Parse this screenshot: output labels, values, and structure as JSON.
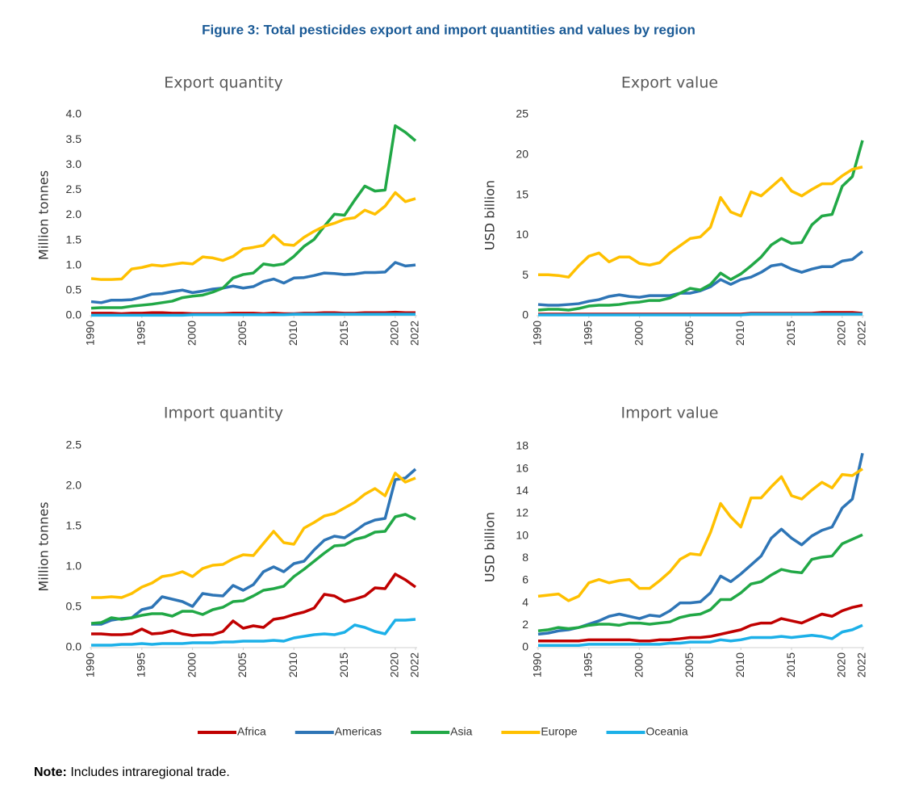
{
  "title": "Figure 3: Total pesticides export and import quantities and values by region",
  "note": {
    "label": "Note:",
    "text": "Includes intraregional trade."
  },
  "chart_data": [
    {
      "type": "line",
      "title": "Export quantity",
      "y_label": "Million tonnes",
      "x": [
        1990,
        1991,
        1992,
        1993,
        1994,
        1995,
        1996,
        1997,
        1998,
        1999,
        2000,
        2001,
        2002,
        2003,
        2004,
        2005,
        2006,
        2007,
        2008,
        2009,
        2010,
        2011,
        2012,
        2013,
        2014,
        2015,
        2016,
        2017,
        2018,
        2019,
        2020,
        2021,
        2022
      ],
      "xlim": [
        1990,
        2022
      ],
      "xticks": [
        1990,
        1995,
        2000,
        2005,
        2010,
        2015,
        2020,
        2022
      ],
      "ylim": [
        0,
        4
      ],
      "yticks": [
        {
          "value": 0,
          "label": "0.0"
        },
        {
          "value": 0.5,
          "label": "0.5"
        },
        {
          "value": 1,
          "label": "1.0"
        },
        {
          "value": 1.5,
          "label": "1.5"
        },
        {
          "value": 2,
          "label": "2.0"
        },
        {
          "value": 2.5,
          "label": "2.5"
        },
        {
          "value": 3,
          "label": "3.0"
        },
        {
          "value": 3.5,
          "label": "3.5"
        },
        {
          "value": 4,
          "label": "4.0"
        }
      ],
      "series": [
        {
          "name": "Africa",
          "color": "#c00000",
          "values": [
            0.05,
            0.05,
            0.05,
            0.04,
            0.05,
            0.05,
            0.06,
            0.06,
            0.05,
            0.05,
            0.04,
            0.04,
            0.04,
            0.04,
            0.05,
            0.05,
            0.05,
            0.04,
            0.05,
            0.04,
            0.04,
            0.05,
            0.05,
            0.06,
            0.06,
            0.05,
            0.05,
            0.06,
            0.06,
            0.06,
            0.07,
            0.06,
            0.06
          ]
        },
        {
          "name": "Americas",
          "color": "#2e75b6",
          "values": [
            0.28,
            0.26,
            0.31,
            0.31,
            0.32,
            0.37,
            0.43,
            0.44,
            0.48,
            0.51,
            0.46,
            0.49,
            0.53,
            0.55,
            0.59,
            0.55,
            0.58,
            0.68,
            0.73,
            0.65,
            0.75,
            0.76,
            0.8,
            0.85,
            0.84,
            0.82,
            0.83,
            0.86,
            0.86,
            0.87,
            1.06,
            0.99,
            1.01
          ]
        },
        {
          "name": "Asia",
          "color": "#21a846",
          "values": [
            0.15,
            0.16,
            0.16,
            0.16,
            0.19,
            0.21,
            0.23,
            0.26,
            0.29,
            0.36,
            0.39,
            0.41,
            0.47,
            0.55,
            0.75,
            0.82,
            0.85,
            1.03,
            1.0,
            1.03,
            1.18,
            1.38,
            1.52,
            1.78,
            2.02,
            2.0,
            2.3,
            2.58,
            2.48,
            2.5,
            3.78,
            3.65,
            3.48
          ]
        },
        {
          "name": "Europe",
          "color": "#ffc000",
          "values": [
            0.74,
            0.72,
            0.72,
            0.73,
            0.93,
            0.96,
            1.01,
            0.99,
            1.02,
            1.05,
            1.03,
            1.17,
            1.15,
            1.1,
            1.18,
            1.33,
            1.36,
            1.4,
            1.6,
            1.42,
            1.4,
            1.56,
            1.68,
            1.78,
            1.84,
            1.92,
            1.95,
            2.1,
            2.02,
            2.18,
            2.45,
            2.27,
            2.33
          ]
        },
        {
          "name": "Oceania",
          "color": "#1cb0e8",
          "values": [
            0.01,
            0.01,
            0.01,
            0.01,
            0.01,
            0.01,
            0.01,
            0.01,
            0.01,
            0.01,
            0.02,
            0.02,
            0.02,
            0.02,
            0.02,
            0.02,
            0.02,
            0.02,
            0.02,
            0.02,
            0.03,
            0.03,
            0.03,
            0.03,
            0.03,
            0.03,
            0.03,
            0.03,
            0.03,
            0.03,
            0.03,
            0.03,
            0.03
          ]
        }
      ]
    },
    {
      "type": "line",
      "title": "Export value",
      "y_label": "USD billion",
      "x": [
        1990,
        1991,
        1992,
        1993,
        1994,
        1995,
        1996,
        1997,
        1998,
        1999,
        2000,
        2001,
        2002,
        2003,
        2004,
        2005,
        2006,
        2007,
        2008,
        2009,
        2010,
        2011,
        2012,
        2013,
        2014,
        2015,
        2016,
        2017,
        2018,
        2019,
        2020,
        2021,
        2022
      ],
      "xlim": [
        1990,
        2022
      ],
      "xticks": [
        1990,
        1995,
        2000,
        2005,
        2010,
        2015,
        2020,
        2022
      ],
      "ylim": [
        0,
        25
      ],
      "yticks": [
        0,
        5,
        10,
        15,
        20,
        25
      ],
      "series": [
        {
          "name": "Africa",
          "color": "#c00000",
          "values": [
            0.2,
            0.2,
            0.2,
            0.2,
            0.2,
            0.2,
            0.2,
            0.2,
            0.2,
            0.2,
            0.2,
            0.2,
            0.2,
            0.2,
            0.2,
            0.2,
            0.2,
            0.2,
            0.2,
            0.2,
            0.2,
            0.3,
            0.3,
            0.3,
            0.3,
            0.3,
            0.3,
            0.3,
            0.4,
            0.4,
            0.4,
            0.4,
            0.3
          ]
        },
        {
          "name": "Americas",
          "color": "#2e75b6",
          "values": [
            1.4,
            1.3,
            1.3,
            1.4,
            1.5,
            1.8,
            2.0,
            2.4,
            2.6,
            2.4,
            2.3,
            2.5,
            2.5,
            2.5,
            2.8,
            2.8,
            3.1,
            3.6,
            4.5,
            3.9,
            4.5,
            4.8,
            5.4,
            6.2,
            6.4,
            5.8,
            5.4,
            5.8,
            6.1,
            6.1,
            6.8,
            7.0,
            8.0
          ]
        },
        {
          "name": "Asia",
          "color": "#21a846",
          "values": [
            0.7,
            0.8,
            0.8,
            0.7,
            0.9,
            1.2,
            1.3,
            1.3,
            1.4,
            1.6,
            1.7,
            1.9,
            1.9,
            2.2,
            2.8,
            3.4,
            3.2,
            3.9,
            5.3,
            4.5,
            5.2,
            6.2,
            7.3,
            8.8,
            9.6,
            9.0,
            9.1,
            11.3,
            12.4,
            12.6,
            16.1,
            17.3,
            21.8
          ]
        },
        {
          "name": "Europe",
          "color": "#ffc000",
          "values": [
            5.1,
            5.1,
            5.0,
            4.8,
            6.2,
            7.4,
            7.8,
            6.7,
            7.3,
            7.3,
            6.5,
            6.3,
            6.6,
            7.8,
            8.7,
            9.6,
            9.8,
            11.0,
            14.7,
            12.9,
            12.4,
            15.4,
            14.9,
            16.0,
            17.1,
            15.5,
            14.9,
            15.7,
            16.4,
            16.4,
            17.4,
            18.2,
            18.5
          ]
        },
        {
          "name": "Oceania",
          "color": "#1cb0e8",
          "values": [
            0.1,
            0.1,
            0.1,
            0.1,
            0.1,
            0.1,
            0.1,
            0.1,
            0.1,
            0.1,
            0.1,
            0.1,
            0.1,
            0.1,
            0.1,
            0.1,
            0.1,
            0.1,
            0.1,
            0.1,
            0.1,
            0.2,
            0.2,
            0.2,
            0.2,
            0.2,
            0.2,
            0.2,
            0.2,
            0.2,
            0.2,
            0.2,
            0.2
          ]
        }
      ]
    },
    {
      "type": "line",
      "title": "Import quantity",
      "y_label": "Million tonnes",
      "x": [
        1990,
        1991,
        1992,
        1993,
        1994,
        1995,
        1996,
        1997,
        1998,
        1999,
        2000,
        2001,
        2002,
        2003,
        2004,
        2005,
        2006,
        2007,
        2008,
        2009,
        2010,
        2011,
        2012,
        2013,
        2014,
        2015,
        2016,
        2017,
        2018,
        2019,
        2020,
        2021,
        2022
      ],
      "xlim": [
        1990,
        2022
      ],
      "xticks": [
        1990,
        1995,
        2000,
        2005,
        2010,
        2015,
        2020,
        2022
      ],
      "ylim": [
        0,
        2.5
      ],
      "yticks": [
        {
          "value": 0,
          "label": "0.0"
        },
        {
          "value": 0.5,
          "label": "0.5"
        },
        {
          "value": 1,
          "label": "1.0"
        },
        {
          "value": 1.5,
          "label": "1.5"
        },
        {
          "value": 2,
          "label": "2.0"
        },
        {
          "value": 2.5,
          "label": "2.5"
        }
      ],
      "series": [
        {
          "name": "Africa",
          "color": "#c00000",
          "values": [
            0.17,
            0.17,
            0.16,
            0.16,
            0.17,
            0.23,
            0.17,
            0.18,
            0.21,
            0.17,
            0.15,
            0.16,
            0.16,
            0.2,
            0.33,
            0.24,
            0.27,
            0.25,
            0.35,
            0.37,
            0.41,
            0.44,
            0.49,
            0.66,
            0.64,
            0.57,
            0.6,
            0.64,
            0.74,
            0.73,
            0.91,
            0.84,
            0.75
          ]
        },
        {
          "name": "Americas",
          "color": "#2e75b6",
          "values": [
            0.29,
            0.29,
            0.34,
            0.36,
            0.37,
            0.47,
            0.5,
            0.63,
            0.6,
            0.57,
            0.51,
            0.67,
            0.65,
            0.64,
            0.77,
            0.71,
            0.78,
            0.94,
            1.0,
            0.94,
            1.04,
            1.07,
            1.21,
            1.33,
            1.38,
            1.36,
            1.44,
            1.53,
            1.58,
            1.6,
            2.08,
            2.1,
            2.21
          ]
        },
        {
          "name": "Asia",
          "color": "#21a846",
          "values": [
            0.3,
            0.31,
            0.37,
            0.35,
            0.37,
            0.4,
            0.42,
            0.42,
            0.39,
            0.45,
            0.45,
            0.41,
            0.47,
            0.5,
            0.57,
            0.58,
            0.64,
            0.71,
            0.73,
            0.76,
            0.88,
            0.97,
            1.07,
            1.17,
            1.26,
            1.27,
            1.34,
            1.37,
            1.43,
            1.44,
            1.62,
            1.65,
            1.59
          ]
        },
        {
          "name": "Europe",
          "color": "#ffc000",
          "values": [
            0.62,
            0.62,
            0.63,
            0.62,
            0.67,
            0.75,
            0.8,
            0.88,
            0.9,
            0.94,
            0.88,
            0.98,
            1.02,
            1.03,
            1.1,
            1.15,
            1.14,
            1.29,
            1.44,
            1.3,
            1.28,
            1.48,
            1.55,
            1.63,
            1.66,
            1.73,
            1.8,
            1.9,
            1.97,
            1.88,
            2.16,
            2.05,
            2.1
          ]
        },
        {
          "name": "Oceania",
          "color": "#1cb0e8",
          "values": [
            0.03,
            0.03,
            0.03,
            0.04,
            0.04,
            0.05,
            0.04,
            0.05,
            0.05,
            0.05,
            0.06,
            0.06,
            0.06,
            0.07,
            0.07,
            0.08,
            0.08,
            0.08,
            0.09,
            0.08,
            0.12,
            0.14,
            0.16,
            0.17,
            0.16,
            0.19,
            0.28,
            0.25,
            0.2,
            0.17,
            0.34,
            0.34,
            0.35
          ]
        }
      ]
    },
    {
      "type": "line",
      "title": "Import value",
      "y_label": "USD billion",
      "x": [
        1990,
        1991,
        1992,
        1993,
        1994,
        1995,
        1996,
        1997,
        1998,
        1999,
        2000,
        2001,
        2002,
        2003,
        2004,
        2005,
        2006,
        2007,
        2008,
        2009,
        2010,
        2011,
        2012,
        2013,
        2014,
        2015,
        2016,
        2017,
        2018,
        2019,
        2020,
        2021,
        2022
      ],
      "xlim": [
        1990,
        2022
      ],
      "xticks": [
        1990,
        1995,
        2000,
        2005,
        2010,
        2015,
        2020,
        2022
      ],
      "ylim": [
        0,
        18
      ],
      "yticks": [
        0,
        2,
        4,
        6,
        8,
        10,
        12,
        14,
        16,
        18
      ],
      "series": [
        {
          "name": "Africa",
          "color": "#c00000",
          "values": [
            0.6,
            0.6,
            0.6,
            0.6,
            0.6,
            0.7,
            0.7,
            0.7,
            0.7,
            0.7,
            0.6,
            0.6,
            0.7,
            0.7,
            0.8,
            0.9,
            0.9,
            1.0,
            1.2,
            1.4,
            1.6,
            2.0,
            2.2,
            2.2,
            2.6,
            2.4,
            2.2,
            2.6,
            3.0,
            2.8,
            3.3,
            3.6,
            3.8
          ]
        },
        {
          "name": "Americas",
          "color": "#2e75b6",
          "values": [
            1.2,
            1.3,
            1.5,
            1.6,
            1.8,
            2.1,
            2.4,
            2.8,
            3.0,
            2.8,
            2.6,
            2.9,
            2.8,
            3.3,
            4.0,
            4.0,
            4.1,
            4.9,
            6.4,
            5.9,
            6.6,
            7.4,
            8.2,
            9.8,
            10.6,
            9.8,
            9.2,
            10.0,
            10.5,
            10.8,
            12.5,
            13.3,
            17.4
          ]
        },
        {
          "name": "Asia",
          "color": "#21a846",
          "values": [
            1.5,
            1.6,
            1.8,
            1.7,
            1.8,
            2.0,
            2.1,
            2.1,
            2.0,
            2.2,
            2.2,
            2.1,
            2.2,
            2.3,
            2.7,
            2.9,
            3.0,
            3.4,
            4.3,
            4.3,
            4.9,
            5.7,
            5.9,
            6.5,
            7.0,
            6.8,
            6.7,
            7.9,
            8.1,
            8.2,
            9.3,
            9.7,
            10.1
          ]
        },
        {
          "name": "Europe",
          "color": "#ffc000",
          "values": [
            4.6,
            4.7,
            4.8,
            4.2,
            4.6,
            5.8,
            6.1,
            5.8,
            6.0,
            6.1,
            5.3,
            5.3,
            6.0,
            6.8,
            7.9,
            8.4,
            8.3,
            10.3,
            12.9,
            11.7,
            10.8,
            13.4,
            13.4,
            14.4,
            15.3,
            13.6,
            13.3,
            14.1,
            14.8,
            14.3,
            15.5,
            15.4,
            16.0
          ]
        },
        {
          "name": "Oceania",
          "color": "#1cb0e8",
          "values": [
            0.2,
            0.2,
            0.2,
            0.2,
            0.2,
            0.3,
            0.3,
            0.3,
            0.3,
            0.3,
            0.3,
            0.3,
            0.3,
            0.4,
            0.4,
            0.5,
            0.5,
            0.5,
            0.7,
            0.6,
            0.7,
            0.9,
            0.9,
            0.9,
            1.0,
            0.9,
            1.0,
            1.1,
            1.0,
            0.8,
            1.4,
            1.6,
            2.0
          ]
        }
      ]
    }
  ]
}
